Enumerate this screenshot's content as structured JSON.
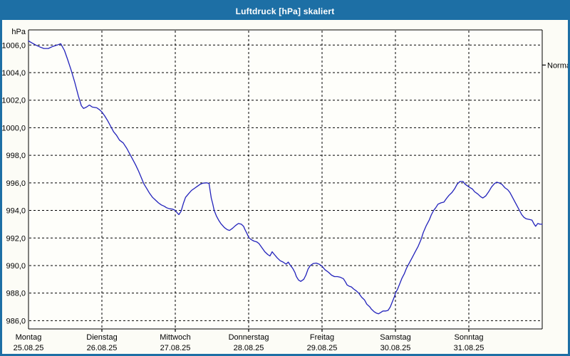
{
  "window": {
    "title": "Luftdruck [hPa] skaliert"
  },
  "colors": {
    "frame": "#1d6fa5",
    "titlebar_bg": "#1d6fa5",
    "title_text": "#ffffff",
    "window_bg": "#fcfcf6",
    "plot_bg": "#fefefa",
    "grid": "#000000",
    "axis": "#000000",
    "line": "#2222bb",
    "label_text": "#000000"
  },
  "chart_data": {
    "type": "line",
    "title": "Luftdruck [hPa] skaliert",
    "unit_label": "hPa",
    "ylabel": "hPa",
    "xlabel": "",
    "grid": true,
    "legend": "none",
    "ylim": [
      985.4,
      1007.1
    ],
    "xlim_days": [
      0,
      7
    ],
    "yticks": [
      {
        "value": 1006,
        "label": "1006,0"
      },
      {
        "value": 1004,
        "label": "1004,0"
      },
      {
        "value": 1002,
        "label": "1002,0"
      },
      {
        "value": 1000,
        "label": "1000,0"
      },
      {
        "value": 998,
        "label": "998,0"
      },
      {
        "value": 996,
        "label": "996,0"
      },
      {
        "value": 994,
        "label": "994,0"
      },
      {
        "value": 992,
        "label": "992,0"
      },
      {
        "value": 990,
        "label": "990,0"
      },
      {
        "value": 988,
        "label": "988,0"
      },
      {
        "value": 986,
        "label": "986,0"
      }
    ],
    "x_axis": {
      "days": [
        {
          "name": "Montag",
          "date": "25.08.25"
        },
        {
          "name": "Dienstag",
          "date": "26.08.25"
        },
        {
          "name": "Mittwoch",
          "date": "27.08.25"
        },
        {
          "name": "Donnerstag",
          "date": "28.08.25"
        },
        {
          "name": "Freitag",
          "date": "29.08.25"
        },
        {
          "name": "Samstag",
          "date": "30.08.25"
        },
        {
          "name": "Sonntag",
          "date": "31.08.25"
        }
      ]
    },
    "right_marker": {
      "label": "Normal",
      "value": 1004.55
    },
    "series": [
      {
        "name": "Luftdruck",
        "color": "#2222bb",
        "points": [
          [
            0.0,
            1006.3
          ],
          [
            0.05,
            1006.15
          ],
          [
            0.1,
            1006.0
          ],
          [
            0.16,
            1005.85
          ],
          [
            0.21,
            1005.75
          ],
          [
            0.27,
            1005.75
          ],
          [
            0.33,
            1005.9
          ],
          [
            0.39,
            1006.0
          ],
          [
            0.44,
            1006.1
          ],
          [
            0.49,
            1005.6
          ],
          [
            0.53,
            1005.0
          ],
          [
            0.58,
            1004.2
          ],
          [
            0.63,
            1003.3
          ],
          [
            0.68,
            1002.3
          ],
          [
            0.72,
            1001.6
          ],
          [
            0.75,
            1001.4
          ],
          [
            0.79,
            1001.5
          ],
          [
            0.83,
            1001.65
          ],
          [
            0.87,
            1001.5
          ],
          [
            0.93,
            1001.45
          ],
          [
            0.97,
            1001.3
          ],
          [
            1.0,
            1001.15
          ],
          [
            1.04,
            1000.85
          ],
          [
            1.08,
            1000.5
          ],
          [
            1.12,
            1000.1
          ],
          [
            1.16,
            999.7
          ],
          [
            1.2,
            999.45
          ],
          [
            1.24,
            999.1
          ],
          [
            1.29,
            998.9
          ],
          [
            1.34,
            998.5
          ],
          [
            1.38,
            998.1
          ],
          [
            1.42,
            997.7
          ],
          [
            1.46,
            997.3
          ],
          [
            1.5,
            996.85
          ],
          [
            1.54,
            996.35
          ],
          [
            1.57,
            995.95
          ],
          [
            1.61,
            995.6
          ],
          [
            1.65,
            995.25
          ],
          [
            1.69,
            994.95
          ],
          [
            1.73,
            994.75
          ],
          [
            1.77,
            994.55
          ],
          [
            1.81,
            994.4
          ],
          [
            1.85,
            994.3
          ],
          [
            1.88,
            994.2
          ],
          [
            1.92,
            994.12
          ],
          [
            1.96,
            994.1
          ],
          [
            2.0,
            994.0
          ],
          [
            2.03,
            993.8
          ],
          [
            2.05,
            993.7
          ],
          [
            2.08,
            993.95
          ],
          [
            2.11,
            994.5
          ],
          [
            2.14,
            994.95
          ],
          [
            2.18,
            995.2
          ],
          [
            2.22,
            995.45
          ],
          [
            2.26,
            995.6
          ],
          [
            2.3,
            995.75
          ],
          [
            2.34,
            995.9
          ],
          [
            2.38,
            995.98
          ],
          [
            2.43,
            996.0
          ],
          [
            2.46,
            995.95
          ],
          [
            2.49,
            994.9
          ],
          [
            2.51,
            994.5
          ],
          [
            2.53,
            994.0
          ],
          [
            2.56,
            993.6
          ],
          [
            2.59,
            993.3
          ],
          [
            2.62,
            993.05
          ],
          [
            2.67,
            992.75
          ],
          [
            2.71,
            992.6
          ],
          [
            2.74,
            992.55
          ],
          [
            2.78,
            992.7
          ],
          [
            2.82,
            992.9
          ],
          [
            2.86,
            993.05
          ],
          [
            2.9,
            993.0
          ],
          [
            2.93,
            992.85
          ],
          [
            2.95,
            992.6
          ],
          [
            2.98,
            992.3
          ],
          [
            3.0,
            992.05
          ],
          [
            3.03,
            991.9
          ],
          [
            3.07,
            991.78
          ],
          [
            3.11,
            991.72
          ],
          [
            3.14,
            991.6
          ],
          [
            3.18,
            991.3
          ],
          [
            3.22,
            991.0
          ],
          [
            3.26,
            990.8
          ],
          [
            3.29,
            990.7
          ],
          [
            3.32,
            991.0
          ],
          [
            3.35,
            990.8
          ],
          [
            3.39,
            990.55
          ],
          [
            3.43,
            990.35
          ],
          [
            3.47,
            990.25
          ],
          [
            3.51,
            990.1
          ],
          [
            3.54,
            990.25
          ],
          [
            3.57,
            990.0
          ],
          [
            3.6,
            989.8
          ],
          [
            3.63,
            989.5
          ],
          [
            3.65,
            989.2
          ],
          [
            3.68,
            988.95
          ],
          [
            3.71,
            988.85
          ],
          [
            3.75,
            989.0
          ],
          [
            3.78,
            989.3
          ],
          [
            3.81,
            989.75
          ],
          [
            3.84,
            990.0
          ],
          [
            3.88,
            990.15
          ],
          [
            3.92,
            990.18
          ],
          [
            3.96,
            990.1
          ],
          [
            4.0,
            989.95
          ],
          [
            4.04,
            989.7
          ],
          [
            4.09,
            989.5
          ],
          [
            4.13,
            989.3
          ],
          [
            4.17,
            989.2
          ],
          [
            4.21,
            989.2
          ],
          [
            4.25,
            989.15
          ],
          [
            4.29,
            989.05
          ],
          [
            4.32,
            988.8
          ],
          [
            4.34,
            988.6
          ],
          [
            4.37,
            988.5
          ],
          [
            4.4,
            988.45
          ],
          [
            4.43,
            988.3
          ],
          [
            4.47,
            988.15
          ],
          [
            4.5,
            988.0
          ],
          [
            4.54,
            987.7
          ],
          [
            4.58,
            987.5
          ],
          [
            4.61,
            987.2
          ],
          [
            4.65,
            987.0
          ],
          [
            4.67,
            986.85
          ],
          [
            4.71,
            986.65
          ],
          [
            4.74,
            986.55
          ],
          [
            4.77,
            986.5
          ],
          [
            4.8,
            986.6
          ],
          [
            4.83,
            986.7
          ],
          [
            4.87,
            986.7
          ],
          [
            4.9,
            986.75
          ],
          [
            4.93,
            987.0
          ],
          [
            4.96,
            987.4
          ],
          [
            4.99,
            987.8
          ],
          [
            5.0,
            988.0
          ],
          [
            5.03,
            988.3
          ],
          [
            5.06,
            988.7
          ],
          [
            5.09,
            989.1
          ],
          [
            5.12,
            989.4
          ],
          [
            5.15,
            989.8
          ],
          [
            5.19,
            990.2
          ],
          [
            5.23,
            990.6
          ],
          [
            5.27,
            991.0
          ],
          [
            5.31,
            991.4
          ],
          [
            5.35,
            991.9
          ],
          [
            5.38,
            992.4
          ],
          [
            5.42,
            992.9
          ],
          [
            5.46,
            993.3
          ],
          [
            5.49,
            993.7
          ],
          [
            5.52,
            994.0
          ],
          [
            5.55,
            994.2
          ],
          [
            5.58,
            994.45
          ],
          [
            5.62,
            994.55
          ],
          [
            5.66,
            994.6
          ],
          [
            5.7,
            994.9
          ],
          [
            5.73,
            995.1
          ],
          [
            5.77,
            995.3
          ],
          [
            5.81,
            995.6
          ],
          [
            5.84,
            995.9
          ],
          [
            5.88,
            996.1
          ],
          [
            5.92,
            996.1
          ],
          [
            5.95,
            995.9
          ],
          [
            5.99,
            995.75
          ],
          [
            6.0,
            995.7
          ],
          [
            6.05,
            995.55
          ],
          [
            6.08,
            995.35
          ],
          [
            6.12,
            995.2
          ],
          [
            6.16,
            995.0
          ],
          [
            6.19,
            994.9
          ],
          [
            6.23,
            995.05
          ],
          [
            6.27,
            995.35
          ],
          [
            6.31,
            995.7
          ],
          [
            6.35,
            995.95
          ],
          [
            6.38,
            996.05
          ],
          [
            6.41,
            996.0
          ],
          [
            6.45,
            995.9
          ],
          [
            6.49,
            995.65
          ],
          [
            6.53,
            995.5
          ],
          [
            6.56,
            995.3
          ],
          [
            6.59,
            995.0
          ],
          [
            6.63,
            994.6
          ],
          [
            6.66,
            994.3
          ],
          [
            6.69,
            994.0
          ],
          [
            6.72,
            993.7
          ],
          [
            6.75,
            993.5
          ],
          [
            6.78,
            993.4
          ],
          [
            6.82,
            993.35
          ],
          [
            6.86,
            993.3
          ],
          [
            6.89,
            993.0
          ],
          [
            6.91,
            992.85
          ],
          [
            6.94,
            993.05
          ],
          [
            6.97,
            993.0
          ],
          [
            7.0,
            993.0
          ]
        ]
      }
    ]
  }
}
